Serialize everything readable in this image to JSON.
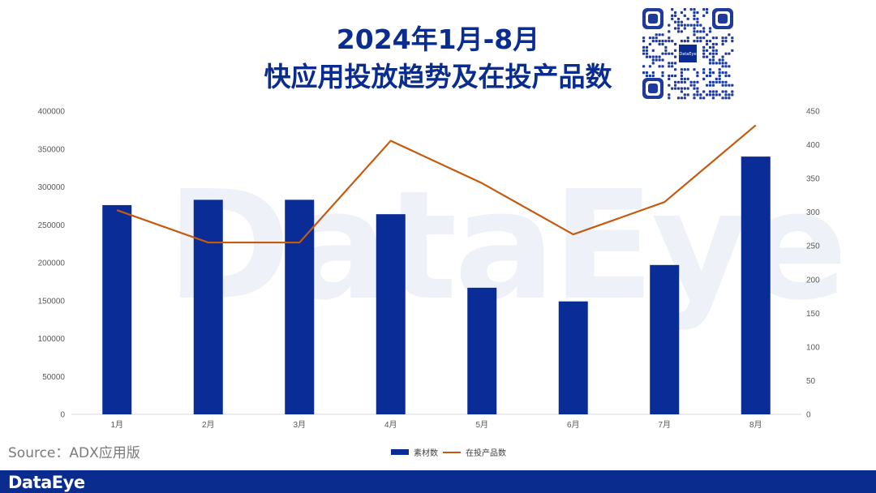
{
  "title": {
    "line1": "2024年1月-8月",
    "line2": "快应用投放趋势及在投产品数"
  },
  "qr_logo_text": "DataEye",
  "watermark_text": "DataEye",
  "source_text": "Source：ADX应用版",
  "footer_logo": "DataEye",
  "colors": {
    "bar": "#0a2c96",
    "line": "#c55a11",
    "title": "#0a2c8f",
    "footer": "#0a2c8f"
  },
  "chart_data": {
    "type": "bar",
    "categories": [
      "1月",
      "2月",
      "3月",
      "4月",
      "5月",
      "6月",
      "7月",
      "8月"
    ],
    "series": [
      {
        "name": "素材数",
        "type": "bar",
        "axis": "left",
        "values": [
          276000,
          283000,
          283000,
          264000,
          167000,
          149000,
          197000,
          340000
        ]
      },
      {
        "name": "在投产品数",
        "type": "line",
        "axis": "right",
        "values": [
          303,
          255,
          255,
          406,
          343,
          267,
          315,
          429
        ]
      }
    ],
    "y_left": {
      "min": 0,
      "max": 400000,
      "ticks": [
        0,
        50000,
        100000,
        150000,
        200000,
        250000,
        300000,
        350000,
        400000
      ]
    },
    "y_right": {
      "min": 0,
      "max": 450,
      "ticks": [
        0,
        50,
        100,
        150,
        200,
        250,
        300,
        350,
        400,
        450
      ]
    },
    "grid": false,
    "legend_position": "bottom"
  }
}
